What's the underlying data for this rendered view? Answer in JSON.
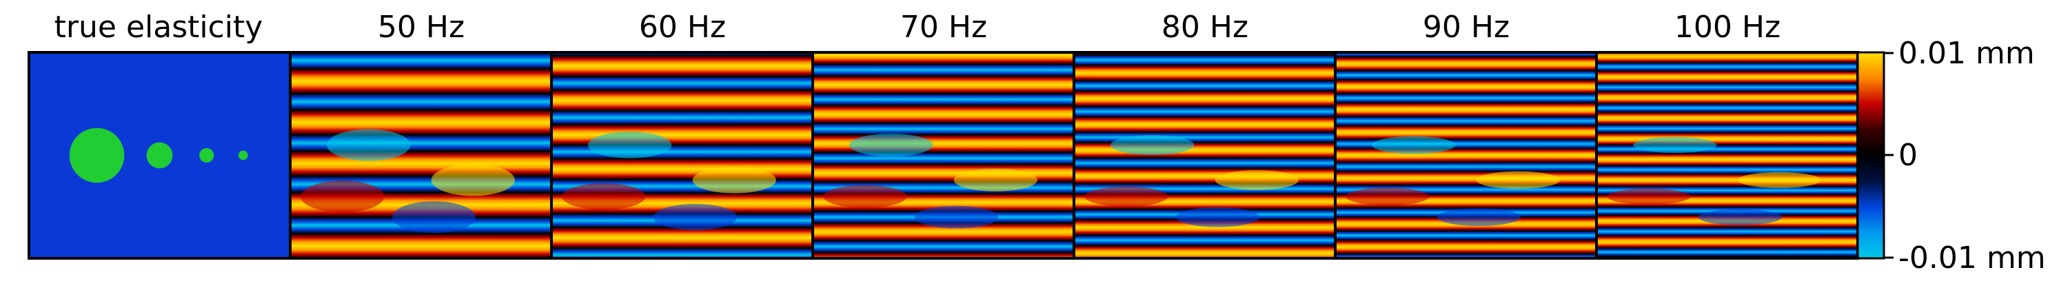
{
  "chart_data": {
    "type": "heatmap",
    "panels": [
      {
        "title": "true elasticity",
        "kind": "elasticity",
        "background_color": "#0a39d6",
        "inclusion_color": "#22cc33",
        "inclusion_count": 4
      },
      {
        "title": "50 Hz",
        "kind": "wave",
        "frequency_hz": 50,
        "bands": 5
      },
      {
        "title": "60 Hz",
        "kind": "wave",
        "frequency_hz": 60,
        "bands": 6
      },
      {
        "title": "70 Hz",
        "kind": "wave",
        "frequency_hz": 70,
        "bands": 7
      },
      {
        "title": "80 Hz",
        "kind": "wave",
        "frequency_hz": 80,
        "bands": 8
      },
      {
        "title": "90 Hz",
        "kind": "wave",
        "frequency_hz": 90,
        "bands": 9
      },
      {
        "title": "100 Hz",
        "kind": "wave",
        "frequency_hz": 100,
        "bands": 10
      }
    ],
    "colorbar": {
      "min": -0.01,
      "max": 0.01,
      "unit": "mm",
      "tick_labels": [
        "0.01 mm",
        "0",
        "-0.01 mm"
      ],
      "colors": [
        "#ffe000",
        "#ff8800",
        "#c80000",
        "#3a0000",
        "#000000",
        "#001040",
        "#0044dd",
        "#0099ee",
        "#00c8e8"
      ]
    }
  }
}
